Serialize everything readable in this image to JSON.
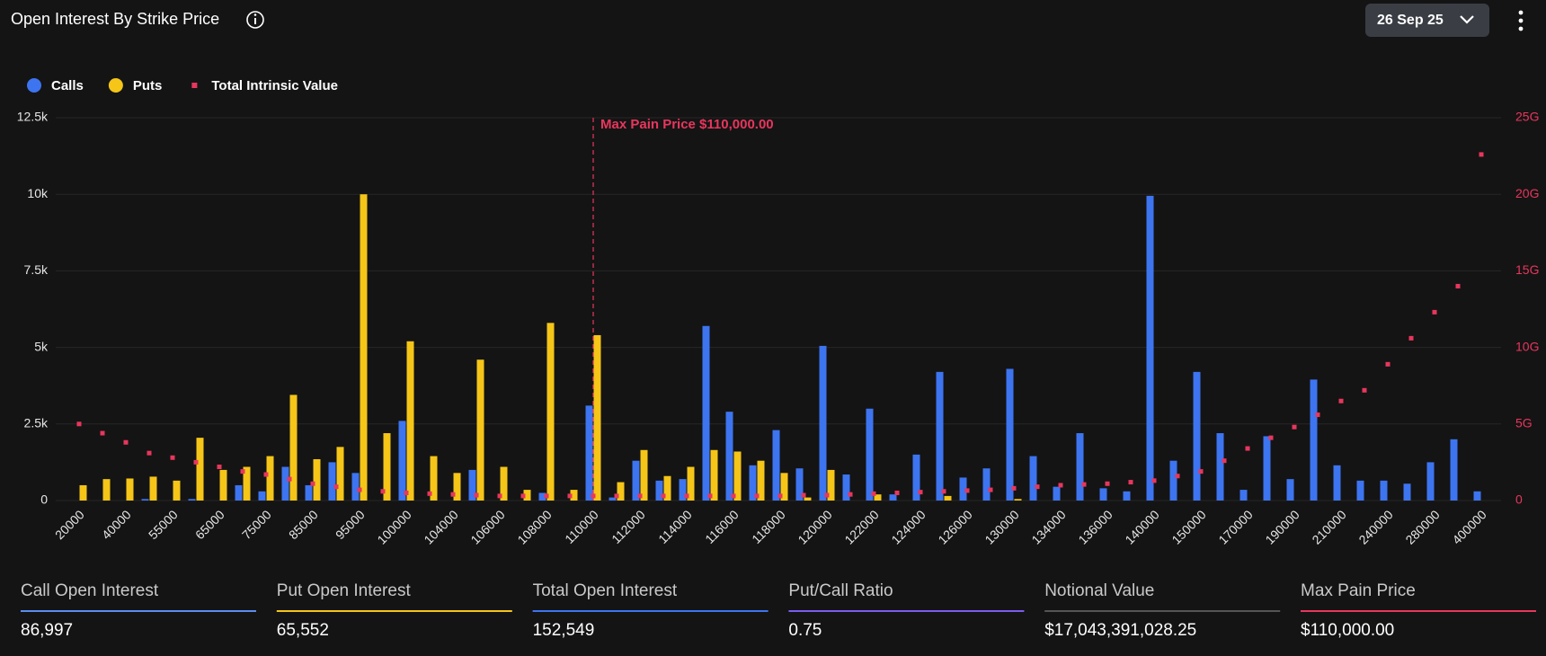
{
  "chart_data": {
    "type": "bar",
    "title": "Open Interest By Strike Price",
    "date_selector": "26 Sep 25",
    "categories": [
      "20000",
      null,
      "40000",
      null,
      "55000",
      null,
      "65000",
      null,
      "75000",
      null,
      "85000",
      null,
      "95000",
      null,
      "100000",
      null,
      "104000",
      null,
      "106000",
      null,
      "108000",
      null,
      "110000",
      null,
      "112000",
      null,
      "114000",
      null,
      "116000",
      null,
      "118000",
      null,
      "120000",
      null,
      "122000",
      null,
      "124000",
      null,
      "126000",
      null,
      "130000",
      null,
      "134000",
      null,
      "136000",
      null,
      "140000",
      null,
      "150000",
      null,
      "170000",
      null,
      "190000",
      null,
      "210000",
      null,
      "240000",
      null,
      "280000",
      null,
      "400000"
    ],
    "series": [
      {
        "name": "Calls",
        "color": "#3d74f0",
        "values": [
          0,
          0,
          0,
          50,
          0,
          50,
          0,
          500,
          300,
          1100,
          500,
          1250,
          900,
          0,
          2600,
          0,
          0,
          1000,
          0,
          0,
          250,
          0,
          3100,
          100,
          1300,
          650,
          700,
          5700,
          2900,
          1150,
          2300,
          1050,
          5050,
          850,
          3000,
          200,
          1500,
          4200,
          750,
          1050,
          4300,
          1450,
          450,
          2200,
          400,
          300,
          9950,
          1300,
          4200,
          2200,
          350,
          2100,
          700,
          3950,
          1150,
          650,
          650,
          550,
          1250,
          2000,
          300
        ]
      },
      {
        "name": "Puts",
        "color": "#f5c518",
        "values": [
          500,
          700,
          720,
          780,
          650,
          2050,
          1000,
          1100,
          1450,
          3450,
          1350,
          1750,
          10000,
          2200,
          5200,
          1450,
          900,
          4600,
          1100,
          350,
          5800,
          350,
          5400,
          600,
          1650,
          800,
          1100,
          1650,
          1600,
          1300,
          900,
          100,
          1000,
          0,
          200,
          0,
          0,
          150,
          0,
          0,
          50,
          0,
          0,
          0,
          0,
          0,
          0,
          0,
          0,
          0,
          0,
          0,
          0,
          0,
          0,
          0,
          0,
          0,
          0,
          0,
          0
        ]
      },
      {
        "name": "Total Intrinsic Value",
        "color": "#e8365d",
        "type": "scatter",
        "axis": "y2",
        "values": [
          5.0,
          4.4,
          3.8,
          3.1,
          2.8,
          2.5,
          2.2,
          1.9,
          1.7,
          1.4,
          1.1,
          0.9,
          0.7,
          0.6,
          0.5,
          0.45,
          0.4,
          0.35,
          0.3,
          0.3,
          0.3,
          0.3,
          0.3,
          0.3,
          0.3,
          0.3,
          0.3,
          0.3,
          0.3,
          0.3,
          0.3,
          0.35,
          0.35,
          0.4,
          0.45,
          0.5,
          0.55,
          0.6,
          0.65,
          0.7,
          0.8,
          0.9,
          1.0,
          1.05,
          1.1,
          1.2,
          1.3,
          1.6,
          1.9,
          2.6,
          3.4,
          4.1,
          4.8,
          5.6,
          6.5,
          7.2,
          8.9,
          10.6,
          12.3,
          14.0,
          22.6
        ]
      }
    ],
    "ylim": [
      0,
      12500
    ],
    "yticks": [
      0,
      {
        "value": 2500,
        "label": "2.5k"
      },
      {
        "value": 5000,
        "label": "5k"
      },
      {
        "value": 7500,
        "label": "7.5k"
      },
      {
        "value": 10000,
        "label": "10k"
      },
      {
        "value": 12500,
        "label": "12.5k"
      }
    ],
    "y2lim": [
      0,
      25
    ],
    "y2ticks": [
      0,
      {
        "value": 5,
        "label": "5G"
      },
      {
        "value": 10,
        "label": "10G"
      },
      {
        "value": 15,
        "label": "15G"
      },
      {
        "value": 20,
        "label": "20G"
      },
      {
        "value": 25,
        "label": "25G"
      }
    ],
    "grid": true,
    "legend": "top-left",
    "annotation": {
      "text": "Max Pain Price $110,000.00",
      "category": "110000",
      "color": "#e8365d"
    }
  },
  "stats": [
    {
      "label": "Call Open Interest",
      "value": "86,997",
      "color": "#5b8def"
    },
    {
      "label": "Put Open Interest",
      "value": "65,552",
      "color": "#f5c518"
    },
    {
      "label": "Total Open Interest",
      "value": "152,549",
      "color": "#3d74f0"
    },
    {
      "label": "Put/Call Ratio",
      "value": "0.75",
      "color": "#7b5cf0"
    },
    {
      "label": "Notional Value",
      "value": "$17,043,391,028.25",
      "color": "#555555"
    },
    {
      "label": "Max Pain Price",
      "value": "$110,000.00",
      "color": "#e8365d"
    }
  ]
}
